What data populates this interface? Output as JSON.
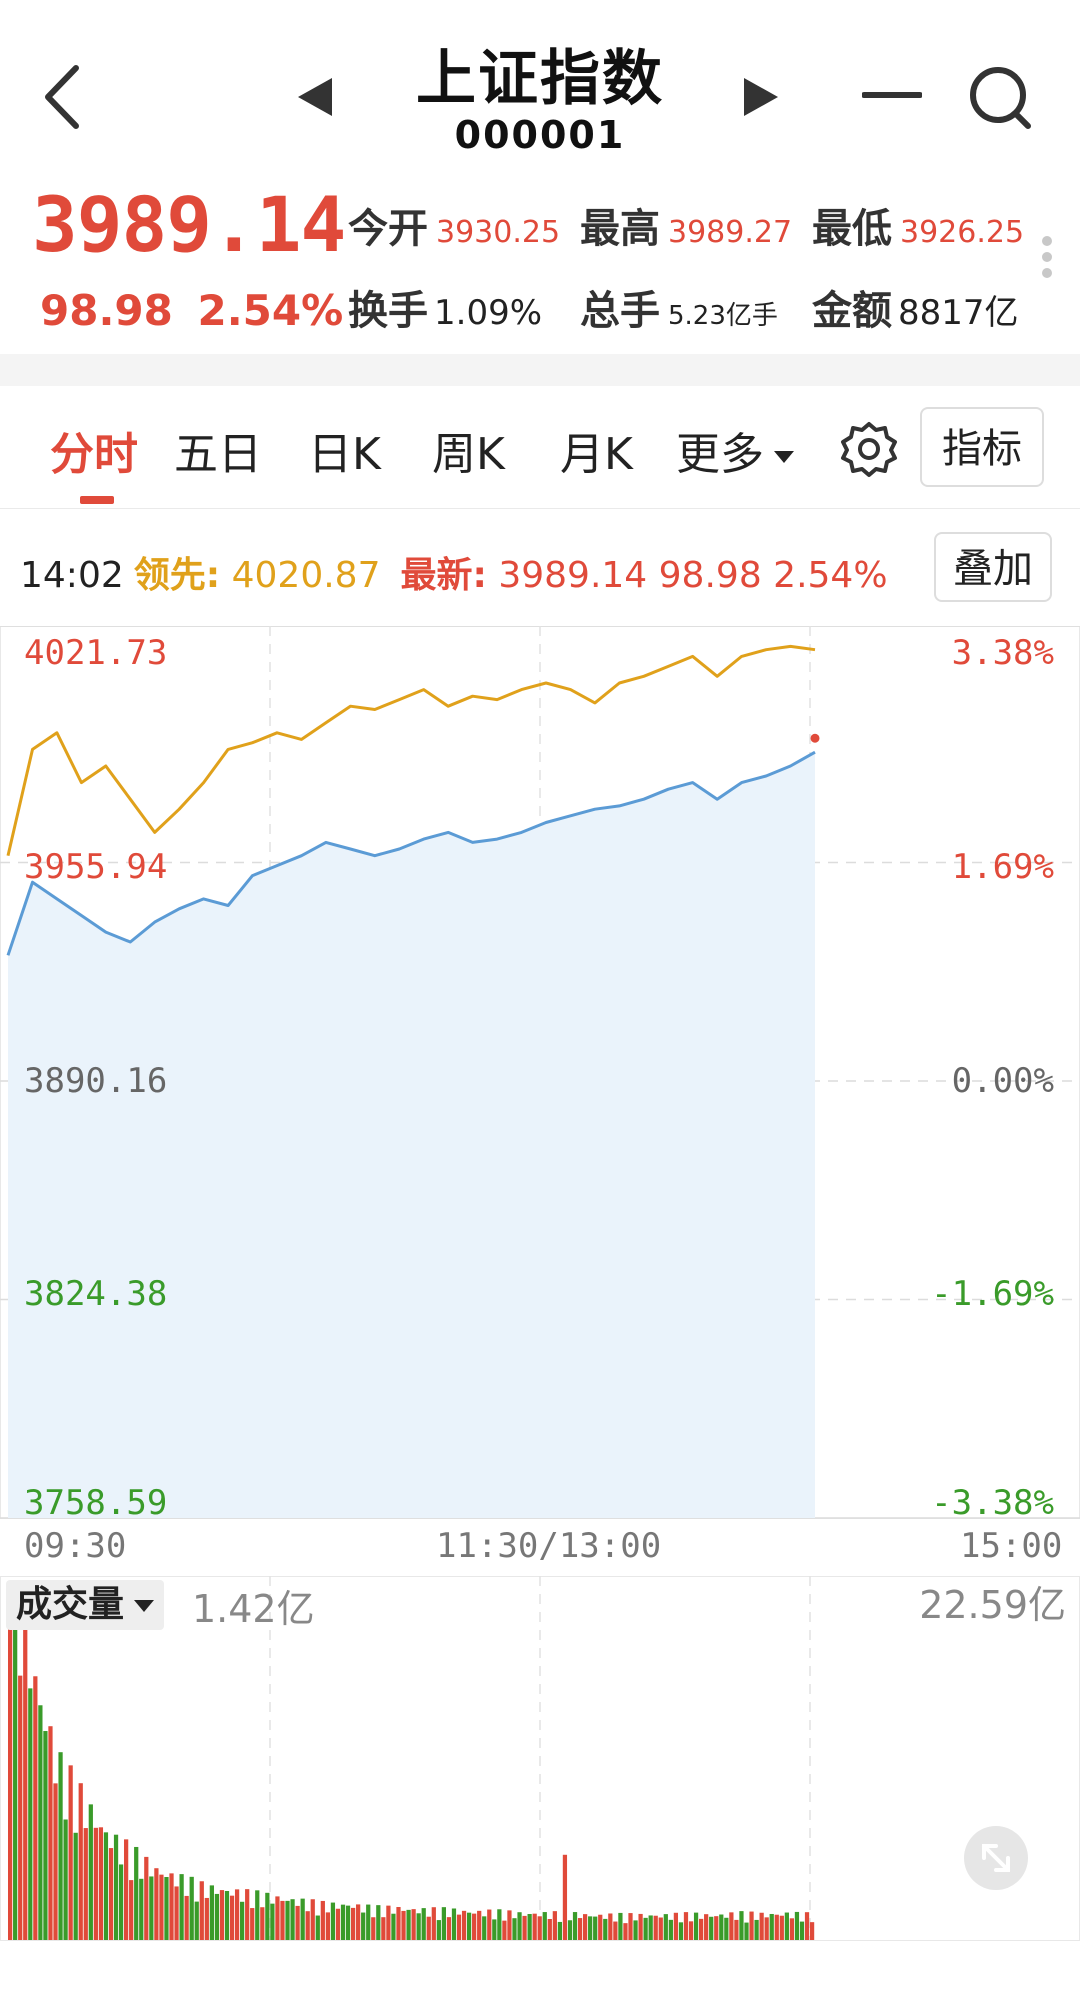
{
  "header": {
    "title": "上证指数",
    "code": "000001"
  },
  "quote": {
    "price": "3989.14",
    "change": "98.98",
    "change_pct": "2.54%",
    "stats": [
      {
        "label": "今开",
        "value": "3930.25"
      },
      {
        "label": "最高",
        "value": "3989.27"
      },
      {
        "label": "最低",
        "value": "3926.25"
      },
      {
        "label": "换手",
        "value": "1.09%"
      },
      {
        "label": "总手",
        "value": "5.23亿手"
      },
      {
        "label": "金额",
        "value": "8817亿"
      }
    ]
  },
  "tabs": [
    {
      "label": "分时",
      "active": true
    },
    {
      "label": "五日",
      "active": false
    },
    {
      "label": "日K",
      "active": false
    },
    {
      "label": "周K",
      "active": false
    },
    {
      "label": "月K",
      "active": false
    },
    {
      "label": "更多",
      "active": false
    }
  ],
  "indicator_button": "指标",
  "overlay_button": "叠加",
  "info_line": {
    "time": "14:02",
    "lead_label": "领先:",
    "lead_value": "4020.87",
    "last_label": "最新:",
    "last_value": "3989.14 98.98 2.54%"
  },
  "volume": {
    "selector_label": "成交量",
    "current": "1.42亿",
    "max": "22.59亿"
  },
  "colors": {
    "up": "#e04a3a",
    "down": "#3a9b2a",
    "lead_line": "#e0a11b",
    "price_line": "#5b9bd5"
  },
  "chart_data": {
    "type": "line",
    "y_left_ticks": [
      "4021.73",
      "3955.94",
      "3890.16",
      "3824.38",
      "3758.59"
    ],
    "y_right_ticks": [
      "3.38%",
      "1.69%",
      "0.00%",
      "-1.69%",
      "-3.38%"
    ],
    "x_ticks": [
      "09:30",
      "11:30/13:00",
      "15:00"
    ],
    "ylim": [
      3758.59,
      4021.73
    ],
    "series": [
      {
        "name": "领先",
        "values": [
          3958,
          3990,
          3995,
          3980,
          3985,
          3975,
          3965,
          3972,
          3980,
          3990,
          3992,
          3995,
          3993,
          3998,
          4003,
          4002,
          4005,
          4008,
          4003,
          4006,
          4005,
          4008,
          4010,
          4008,
          4004,
          4010,
          4012,
          4015,
          4018,
          4012,
          4018,
          4020,
          4021,
          4020
        ]
      },
      {
        "name": "最新",
        "values": [
          3928,
          3950,
          3945,
          3940,
          3935,
          3932,
          3938,
          3942,
          3945,
          3943,
          3952,
          3955,
          3958,
          3962,
          3960,
          3958,
          3960,
          3963,
          3965,
          3962,
          3963,
          3965,
          3968,
          3970,
          3972,
          3973,
          3975,
          3978,
          3980,
          3975,
          3980,
          3982,
          3985,
          3989.14
        ]
      }
    ],
    "volume_values": [
      22.59,
      15,
      10,
      8,
      6,
      5,
      4,
      3.5,
      3,
      2.8,
      2.6,
      2.4,
      2.2,
      2,
      2,
      1.8,
      1.8,
      1.7,
      1.7,
      1.6,
      1.6,
      1.5,
      1.5,
      1.5,
      1.4,
      1.4,
      1.4,
      1.4,
      1.45,
      1.4,
      1.5,
      1.45,
      1.5,
      1.42
    ],
    "grid": true
  }
}
